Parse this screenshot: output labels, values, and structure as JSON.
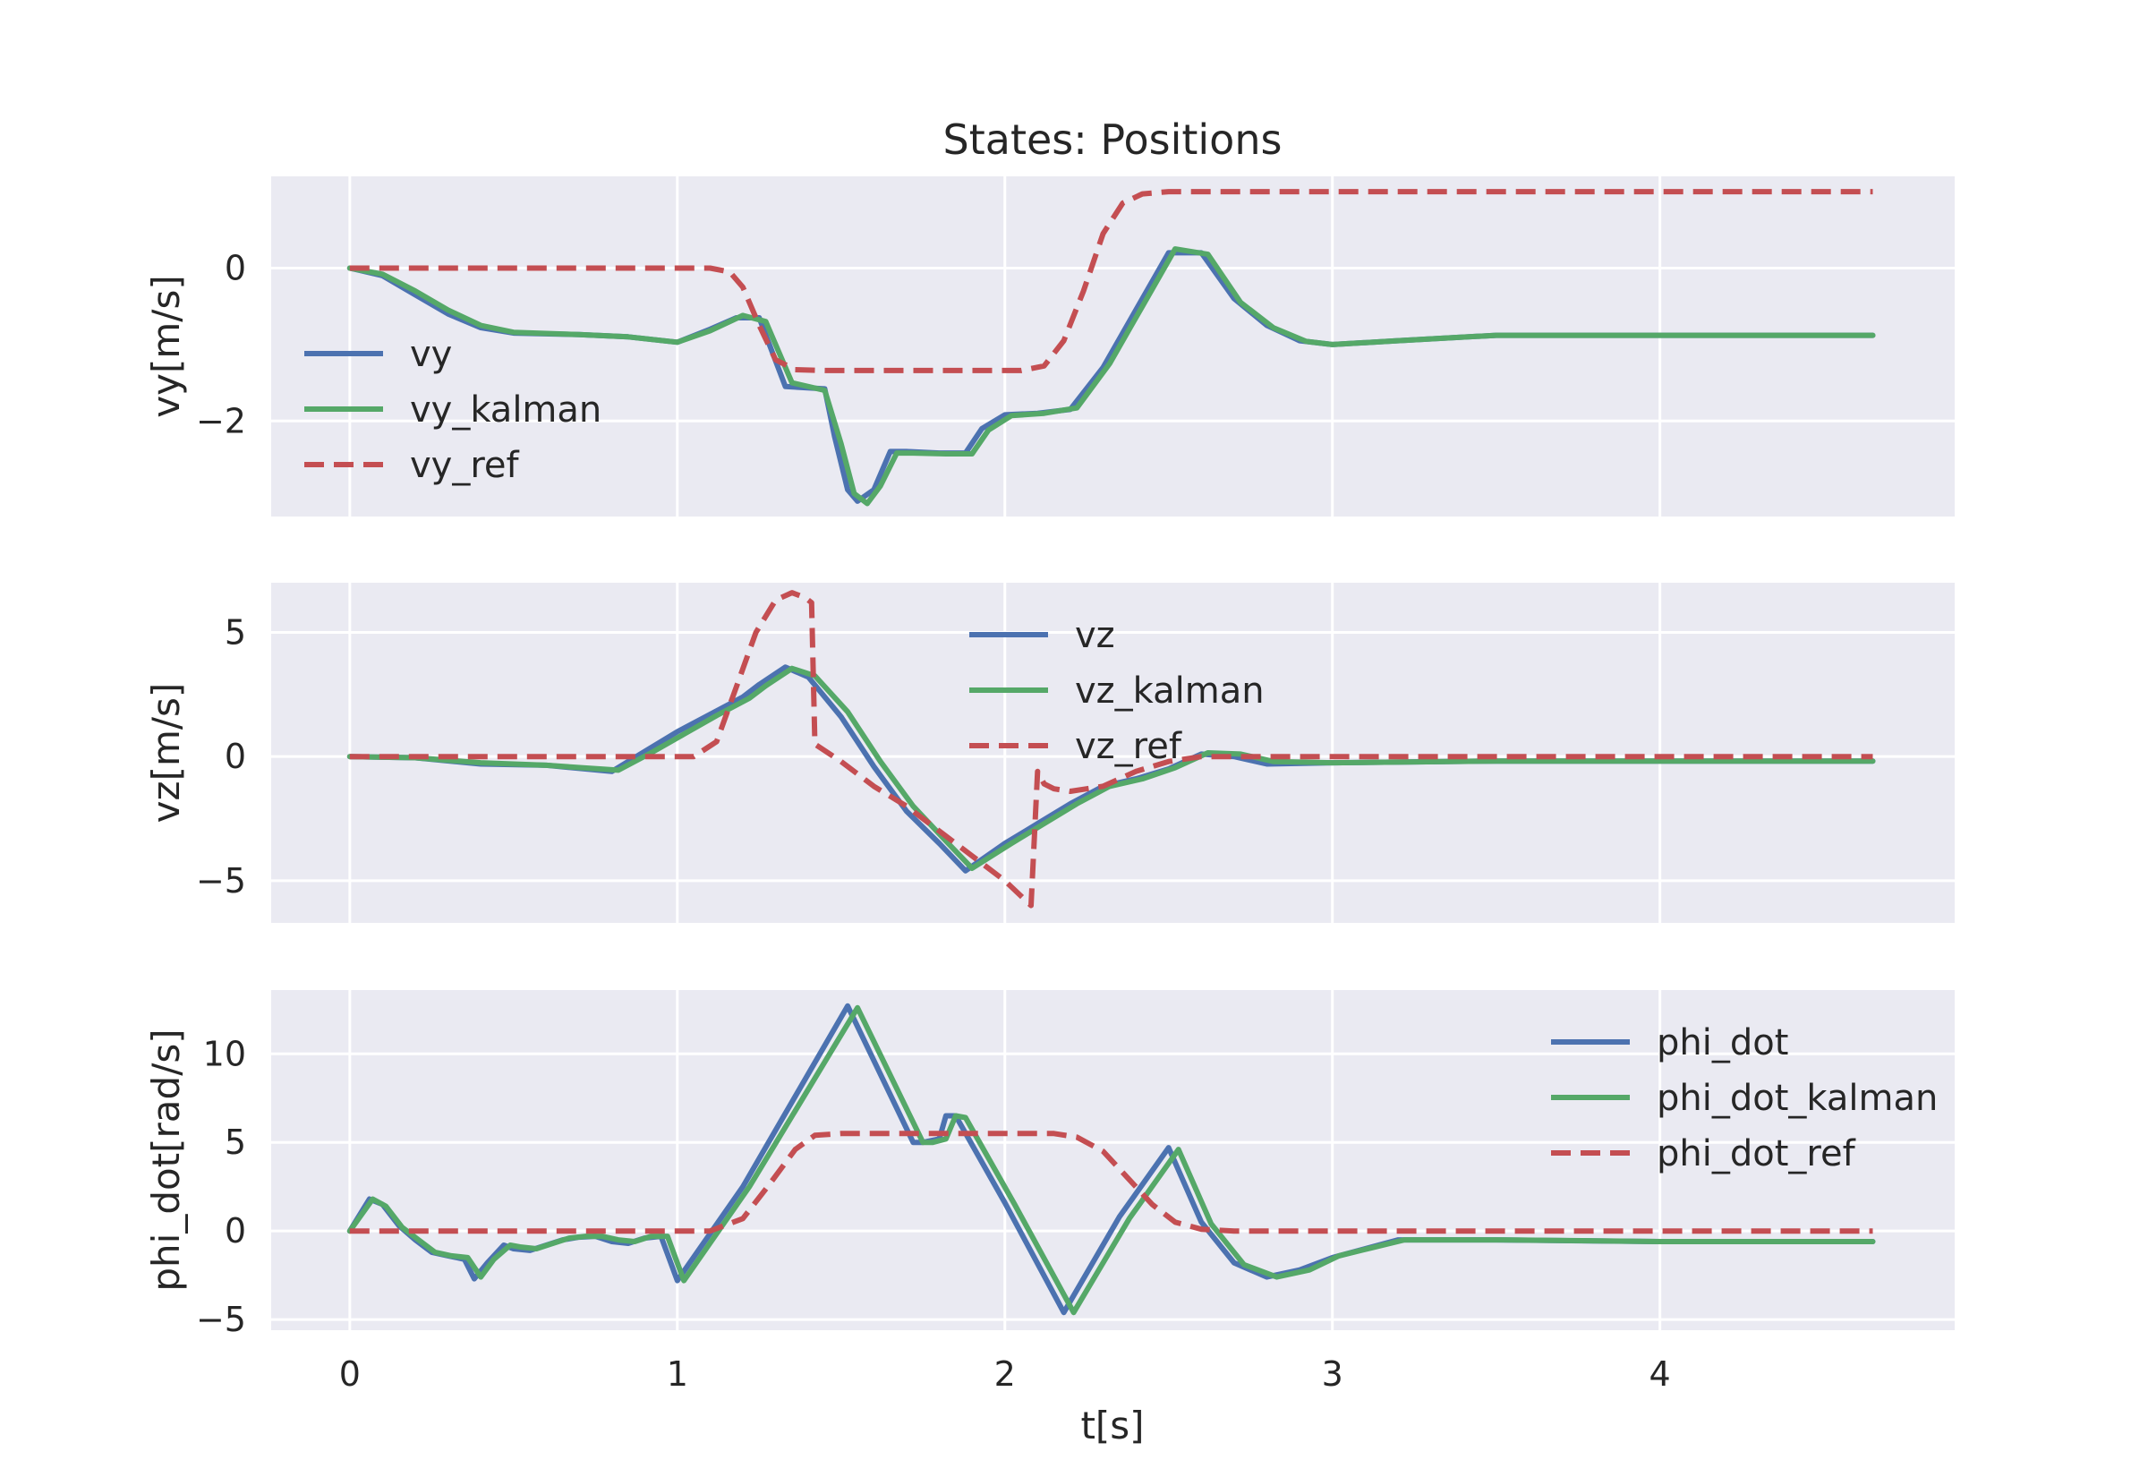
{
  "chart_data": {
    "type": "line",
    "title": "States: Positions",
    "xlabel": "t[s]",
    "xlim": [
      -0.24,
      4.9
    ],
    "xticks": [
      0,
      1,
      2,
      3,
      4
    ],
    "grid": true,
    "style": {
      "background": "#EAEAF2",
      "grid_color": "#FFFFFF",
      "colors": {
        "measured": "#4C72B0",
        "kalman": "#55A868",
        "ref": "#C44E52"
      }
    },
    "panels": [
      {
        "ylabel": "vy[m/s]",
        "ylim": [
          -3.25,
          1.2
        ],
        "yticks": [
          {
            "value": 0,
            "label": "0"
          },
          {
            "value": -2,
            "label": "−2"
          }
        ],
        "legend_position": "center-left",
        "series": [
          {
            "name": "vy",
            "role": "measured",
            "x": [
              0,
              0.1,
              0.2,
              0.3,
              0.4,
              0.5,
              0.7,
              0.85,
              1.0,
              1.1,
              1.18,
              1.25,
              1.33,
              1.45,
              1.48,
              1.52,
              1.55,
              1.6,
              1.65,
              1.7,
              1.8,
              1.88,
              1.93,
              2.0,
              2.1,
              2.2,
              2.3,
              2.4,
              2.5,
              2.6,
              2.7,
              2.8,
              2.9,
              3.0,
              3.2,
              3.5,
              4.0,
              4.65
            ],
            "y": [
              0,
              -0.1,
              -0.35,
              -0.6,
              -0.78,
              -0.85,
              -0.87,
              -0.9,
              -0.97,
              -0.8,
              -0.65,
              -0.65,
              -1.55,
              -1.58,
              -2.2,
              -2.9,
              -3.05,
              -2.9,
              -2.4,
              -2.4,
              -2.42,
              -2.42,
              -2.1,
              -1.92,
              -1.9,
              -1.85,
              -1.3,
              -0.55,
              0.2,
              0.2,
              -0.4,
              -0.75,
              -0.95,
              -1.0,
              -0.95,
              -0.88,
              -0.88,
              -0.88
            ]
          },
          {
            "name": "vy_kalman",
            "role": "kalman",
            "x": [
              0,
              0.1,
              0.2,
              0.3,
              0.4,
              0.5,
              0.7,
              0.85,
              1.0,
              1.1,
              1.2,
              1.27,
              1.35,
              1.45,
              1.5,
              1.54,
              1.58,
              1.62,
              1.67,
              1.72,
              1.82,
              1.9,
              1.95,
              2.02,
              2.12,
              2.22,
              2.32,
              2.42,
              2.52,
              2.62,
              2.72,
              2.82,
              2.92,
              3.0,
              3.2,
              3.5,
              4.0,
              4.65
            ],
            "y": [
              0,
              -0.08,
              -0.3,
              -0.55,
              -0.75,
              -0.84,
              -0.87,
              -0.9,
              -0.97,
              -0.82,
              -0.62,
              -0.7,
              -1.5,
              -1.6,
              -2.3,
              -2.95,
              -3.08,
              -2.85,
              -2.42,
              -2.42,
              -2.43,
              -2.43,
              -2.12,
              -1.93,
              -1.9,
              -1.83,
              -1.25,
              -0.5,
              0.25,
              0.18,
              -0.45,
              -0.78,
              -0.96,
              -1.0,
              -0.95,
              -0.88,
              -0.88,
              -0.88
            ]
          },
          {
            "name": "vy_ref",
            "role": "ref",
            "dashed": true,
            "x": [
              0,
              1.1,
              1.16,
              1.2,
              1.25,
              1.3,
              1.36,
              1.45,
              2.05,
              2.12,
              2.18,
              2.24,
              2.3,
              2.36,
              2.42,
              2.5,
              3.0,
              4.65
            ],
            "y": [
              0,
              0,
              -0.05,
              -0.25,
              -0.75,
              -1.2,
              -1.33,
              -1.34,
              -1.34,
              -1.28,
              -0.95,
              -0.3,
              0.45,
              0.85,
              0.97,
              1.0,
              1.0,
              1.0
            ]
          }
        ]
      },
      {
        "ylabel": "vz[m/s]",
        "ylim": [
          -6.7,
          7.0
        ],
        "yticks": [
          {
            "value": 5,
            "label": "5"
          },
          {
            "value": 0,
            "label": "0"
          },
          {
            "value": -5,
            "label": "−5"
          }
        ],
        "legend_position": "upper-center",
        "series": [
          {
            "name": "vz",
            "role": "measured",
            "x": [
              0,
              0.2,
              0.4,
              0.6,
              0.8,
              0.9,
              1.0,
              1.1,
              1.2,
              1.25,
              1.33,
              1.4,
              1.5,
              1.6,
              1.7,
              1.8,
              1.88,
              2.0,
              2.1,
              2.2,
              2.3,
              2.4,
              2.5,
              2.6,
              2.7,
              2.8,
              3.0,
              3.5,
              4.0,
              4.65
            ],
            "y": [
              0,
              -0.05,
              -0.3,
              -0.35,
              -0.6,
              0.2,
              1.0,
              1.7,
              2.4,
              2.9,
              3.6,
              3.2,
              1.6,
              -0.4,
              -2.2,
              -3.5,
              -4.6,
              -3.5,
              -2.7,
              -1.9,
              -1.2,
              -0.9,
              -0.5,
              0.1,
              0.0,
              -0.3,
              -0.25,
              -0.18,
              -0.18,
              -0.18
            ]
          },
          {
            "name": "vz_kalman",
            "role": "kalman",
            "x": [
              0,
              0.2,
              0.4,
              0.6,
              0.82,
              0.92,
              1.02,
              1.12,
              1.22,
              1.27,
              1.35,
              1.42,
              1.52,
              1.62,
              1.72,
              1.82,
              1.9,
              2.02,
              2.12,
              2.22,
              2.32,
              2.42,
              2.52,
              2.62,
              2.72,
              2.82,
              3.0,
              3.5,
              4.0,
              4.65
            ],
            "y": [
              0,
              -0.05,
              -0.25,
              -0.35,
              -0.55,
              0.15,
              0.9,
              1.65,
              2.35,
              2.85,
              3.55,
              3.25,
              1.8,
              -0.2,
              -2.0,
              -3.4,
              -4.5,
              -3.5,
              -2.7,
              -1.9,
              -1.2,
              -0.9,
              -0.45,
              0.15,
              0.1,
              -0.2,
              -0.25,
              -0.18,
              -0.18,
              -0.18
            ]
          },
          {
            "name": "vz_ref",
            "role": "ref",
            "dashed": true,
            "x": [
              0,
              1.05,
              1.12,
              1.18,
              1.24,
              1.3,
              1.35,
              1.39,
              1.41,
              1.42,
              1.5,
              1.6,
              1.7,
              1.8,
              1.9,
              2.0,
              2.08,
              2.1,
              2.12,
              2.15,
              2.2,
              2.25,
              2.3,
              2.4,
              2.5,
              2.6,
              2.8,
              4.65
            ],
            "y": [
              0,
              0,
              0.6,
              2.8,
              5.0,
              6.3,
              6.6,
              6.4,
              6.2,
              0.5,
              -0.2,
              -1.2,
              -2.0,
              -3.0,
              -4.0,
              -5.0,
              -6.0,
              -0.6,
              -1.1,
              -1.3,
              -1.4,
              -1.3,
              -1.2,
              -0.6,
              -0.2,
              0.0,
              0.0,
              0.0
            ]
          }
        ]
      },
      {
        "ylabel": "phi_dot[rad/s]",
        "ylim": [
          -5.6,
          13.6
        ],
        "yticks": [
          {
            "value": 10,
            "label": "10"
          },
          {
            "value": 5,
            "label": "5"
          },
          {
            "value": 0,
            "label": "0"
          },
          {
            "value": -5,
            "label": "−5"
          }
        ],
        "legend_position": "upper-right",
        "series": [
          {
            "name": "phi_dot",
            "role": "measured",
            "x": [
              0,
              0.06,
              0.1,
              0.15,
              0.2,
              0.25,
              0.3,
              0.35,
              0.38,
              0.42,
              0.47,
              0.5,
              0.55,
              0.6,
              0.65,
              0.7,
              0.75,
              0.8,
              0.85,
              0.9,
              0.95,
              1.0,
              1.2,
              1.52,
              1.72,
              1.75,
              1.8,
              1.82,
              1.85,
              2.0,
              2.18,
              2.35,
              2.5,
              2.6,
              2.7,
              2.8,
              2.9,
              3.0,
              3.2,
              3.5,
              4.0,
              4.65
            ],
            "y": [
              0,
              1.8,
              1.5,
              0.3,
              -0.5,
              -1.2,
              -1.4,
              -1.6,
              -2.7,
              -1.8,
              -0.8,
              -1.0,
              -1.1,
              -0.8,
              -0.5,
              -0.35,
              -0.3,
              -0.6,
              -0.7,
              -0.4,
              -0.3,
              -2.8,
              2.5,
              12.7,
              5.0,
              5.0,
              5.2,
              6.5,
              6.5,
              1.6,
              -4.6,
              0.8,
              4.7,
              0.5,
              -1.8,
              -2.6,
              -2.2,
              -1.5,
              -0.5,
              -0.5,
              -0.6,
              -0.6
            ]
          },
          {
            "name": "phi_dot_kalman",
            "role": "kalman",
            "x": [
              0,
              0.07,
              0.11,
              0.16,
              0.21,
              0.26,
              0.31,
              0.36,
              0.4,
              0.44,
              0.49,
              0.52,
              0.57,
              0.62,
              0.67,
              0.72,
              0.77,
              0.82,
              0.87,
              0.92,
              0.97,
              1.02,
              1.22,
              1.55,
              1.75,
              1.78,
              1.82,
              1.85,
              1.88,
              2.03,
              2.21,
              2.38,
              2.53,
              2.63,
              2.73,
              2.83,
              2.93,
              3.02,
              3.22,
              3.52,
              4.0,
              4.65
            ],
            "y": [
              0,
              1.8,
              1.4,
              0.2,
              -0.5,
              -1.2,
              -1.4,
              -1.5,
              -2.6,
              -1.6,
              -0.8,
              -0.9,
              -1.0,
              -0.7,
              -0.4,
              -0.3,
              -0.3,
              -0.5,
              -0.6,
              -0.3,
              -0.3,
              -2.8,
              2.5,
              12.6,
              5.0,
              5.0,
              5.2,
              6.5,
              6.4,
              1.5,
              -4.6,
              0.7,
              4.6,
              0.4,
              -1.9,
              -2.6,
              -2.2,
              -1.4,
              -0.5,
              -0.5,
              -0.6,
              -0.6
            ]
          },
          {
            "name": "phi_dot_ref",
            "role": "ref",
            "dashed": true,
            "x": [
              0,
              1.1,
              1.2,
              1.28,
              1.36,
              1.42,
              1.5,
              2.15,
              2.22,
              2.3,
              2.38,
              2.45,
              2.52,
              2.6,
              2.7,
              4.65
            ],
            "y": [
              0,
              0,
              0.7,
              2.6,
              4.6,
              5.4,
              5.5,
              5.5,
              5.3,
              4.5,
              2.9,
              1.5,
              0.5,
              0.1,
              0.0,
              0.0
            ]
          }
        ]
      }
    ]
  }
}
